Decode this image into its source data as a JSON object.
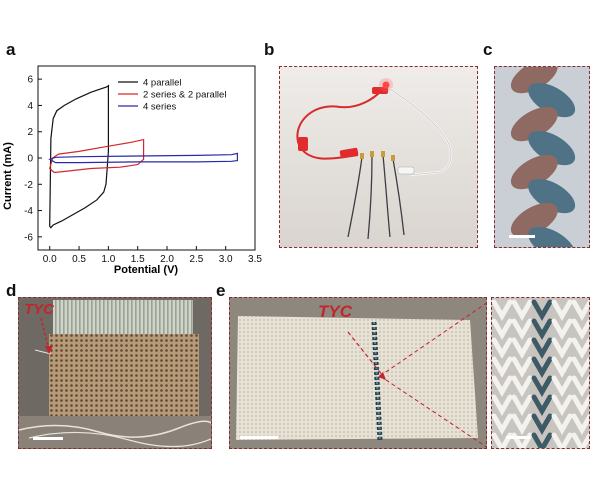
{
  "panels": {
    "a": "a",
    "b": "b",
    "c": "c",
    "d": "d",
    "e": "e"
  },
  "annotations": {
    "tyc_d": "TYC",
    "tyc_e": "TYC"
  },
  "chart_data": {
    "type": "line",
    "xlabel": "Potential (V)",
    "ylabel": "Current (mA)",
    "xlim": [
      -0.2,
      3.5
    ],
    "ylim": [
      -7,
      7
    ],
    "xticks": [
      "0.0",
      "0.5",
      "1.0",
      "1.5",
      "2.0",
      "2.5",
      "3.0",
      "3.5"
    ],
    "yticks": [
      "6",
      "4",
      "2",
      "0",
      "-2",
      "-4",
      "-6"
    ],
    "legend_position": "top-right",
    "grid": false,
    "series": [
      {
        "name": "4 parallel",
        "color": "#111111",
        "x": [
          0.0,
          0.02,
          0.06,
          0.12,
          0.25,
          0.45,
          0.7,
          0.9,
          0.97,
          1.0,
          1.0,
          0.96,
          0.92,
          0.88,
          0.8,
          0.6,
          0.4,
          0.2,
          0.06,
          0.02,
          0.0
        ],
        "y": [
          -5.2,
          1.5,
          3.0,
          3.6,
          4.0,
          4.5,
          5.0,
          5.3,
          5.4,
          5.5,
          0.5,
          -2.0,
          -2.6,
          -2.8,
          -3.2,
          -3.8,
          -4.3,
          -4.8,
          -5.1,
          -5.3,
          -5.2
        ]
      },
      {
        "name": "2 series & 2 parallel",
        "color": "#d8262c",
        "x": [
          0.0,
          0.05,
          0.15,
          0.5,
          1.0,
          1.4,
          1.6,
          1.6,
          1.5,
          1.2,
          0.7,
          0.3,
          0.08,
          0.0
        ],
        "y": [
          -0.8,
          0.0,
          0.3,
          0.5,
          0.9,
          1.2,
          1.4,
          -0.1,
          -0.5,
          -0.7,
          -0.8,
          -1.0,
          -1.1,
          -0.8
        ]
      },
      {
        "name": "4 series",
        "color": "#2a2aa6",
        "x": [
          0.0,
          0.1,
          0.5,
          1.5,
          2.5,
          3.1,
          3.2,
          3.2,
          3.1,
          2.5,
          1.5,
          0.5,
          0.1,
          0.0
        ],
        "y": [
          -0.1,
          0.05,
          0.1,
          0.15,
          0.2,
          0.25,
          0.35,
          -0.2,
          -0.25,
          -0.3,
          -0.3,
          -0.35,
          -0.35,
          -0.1
        ]
      }
    ]
  },
  "colors": {
    "frame": "#8b2a2a",
    "tyc": "#c0262c"
  }
}
